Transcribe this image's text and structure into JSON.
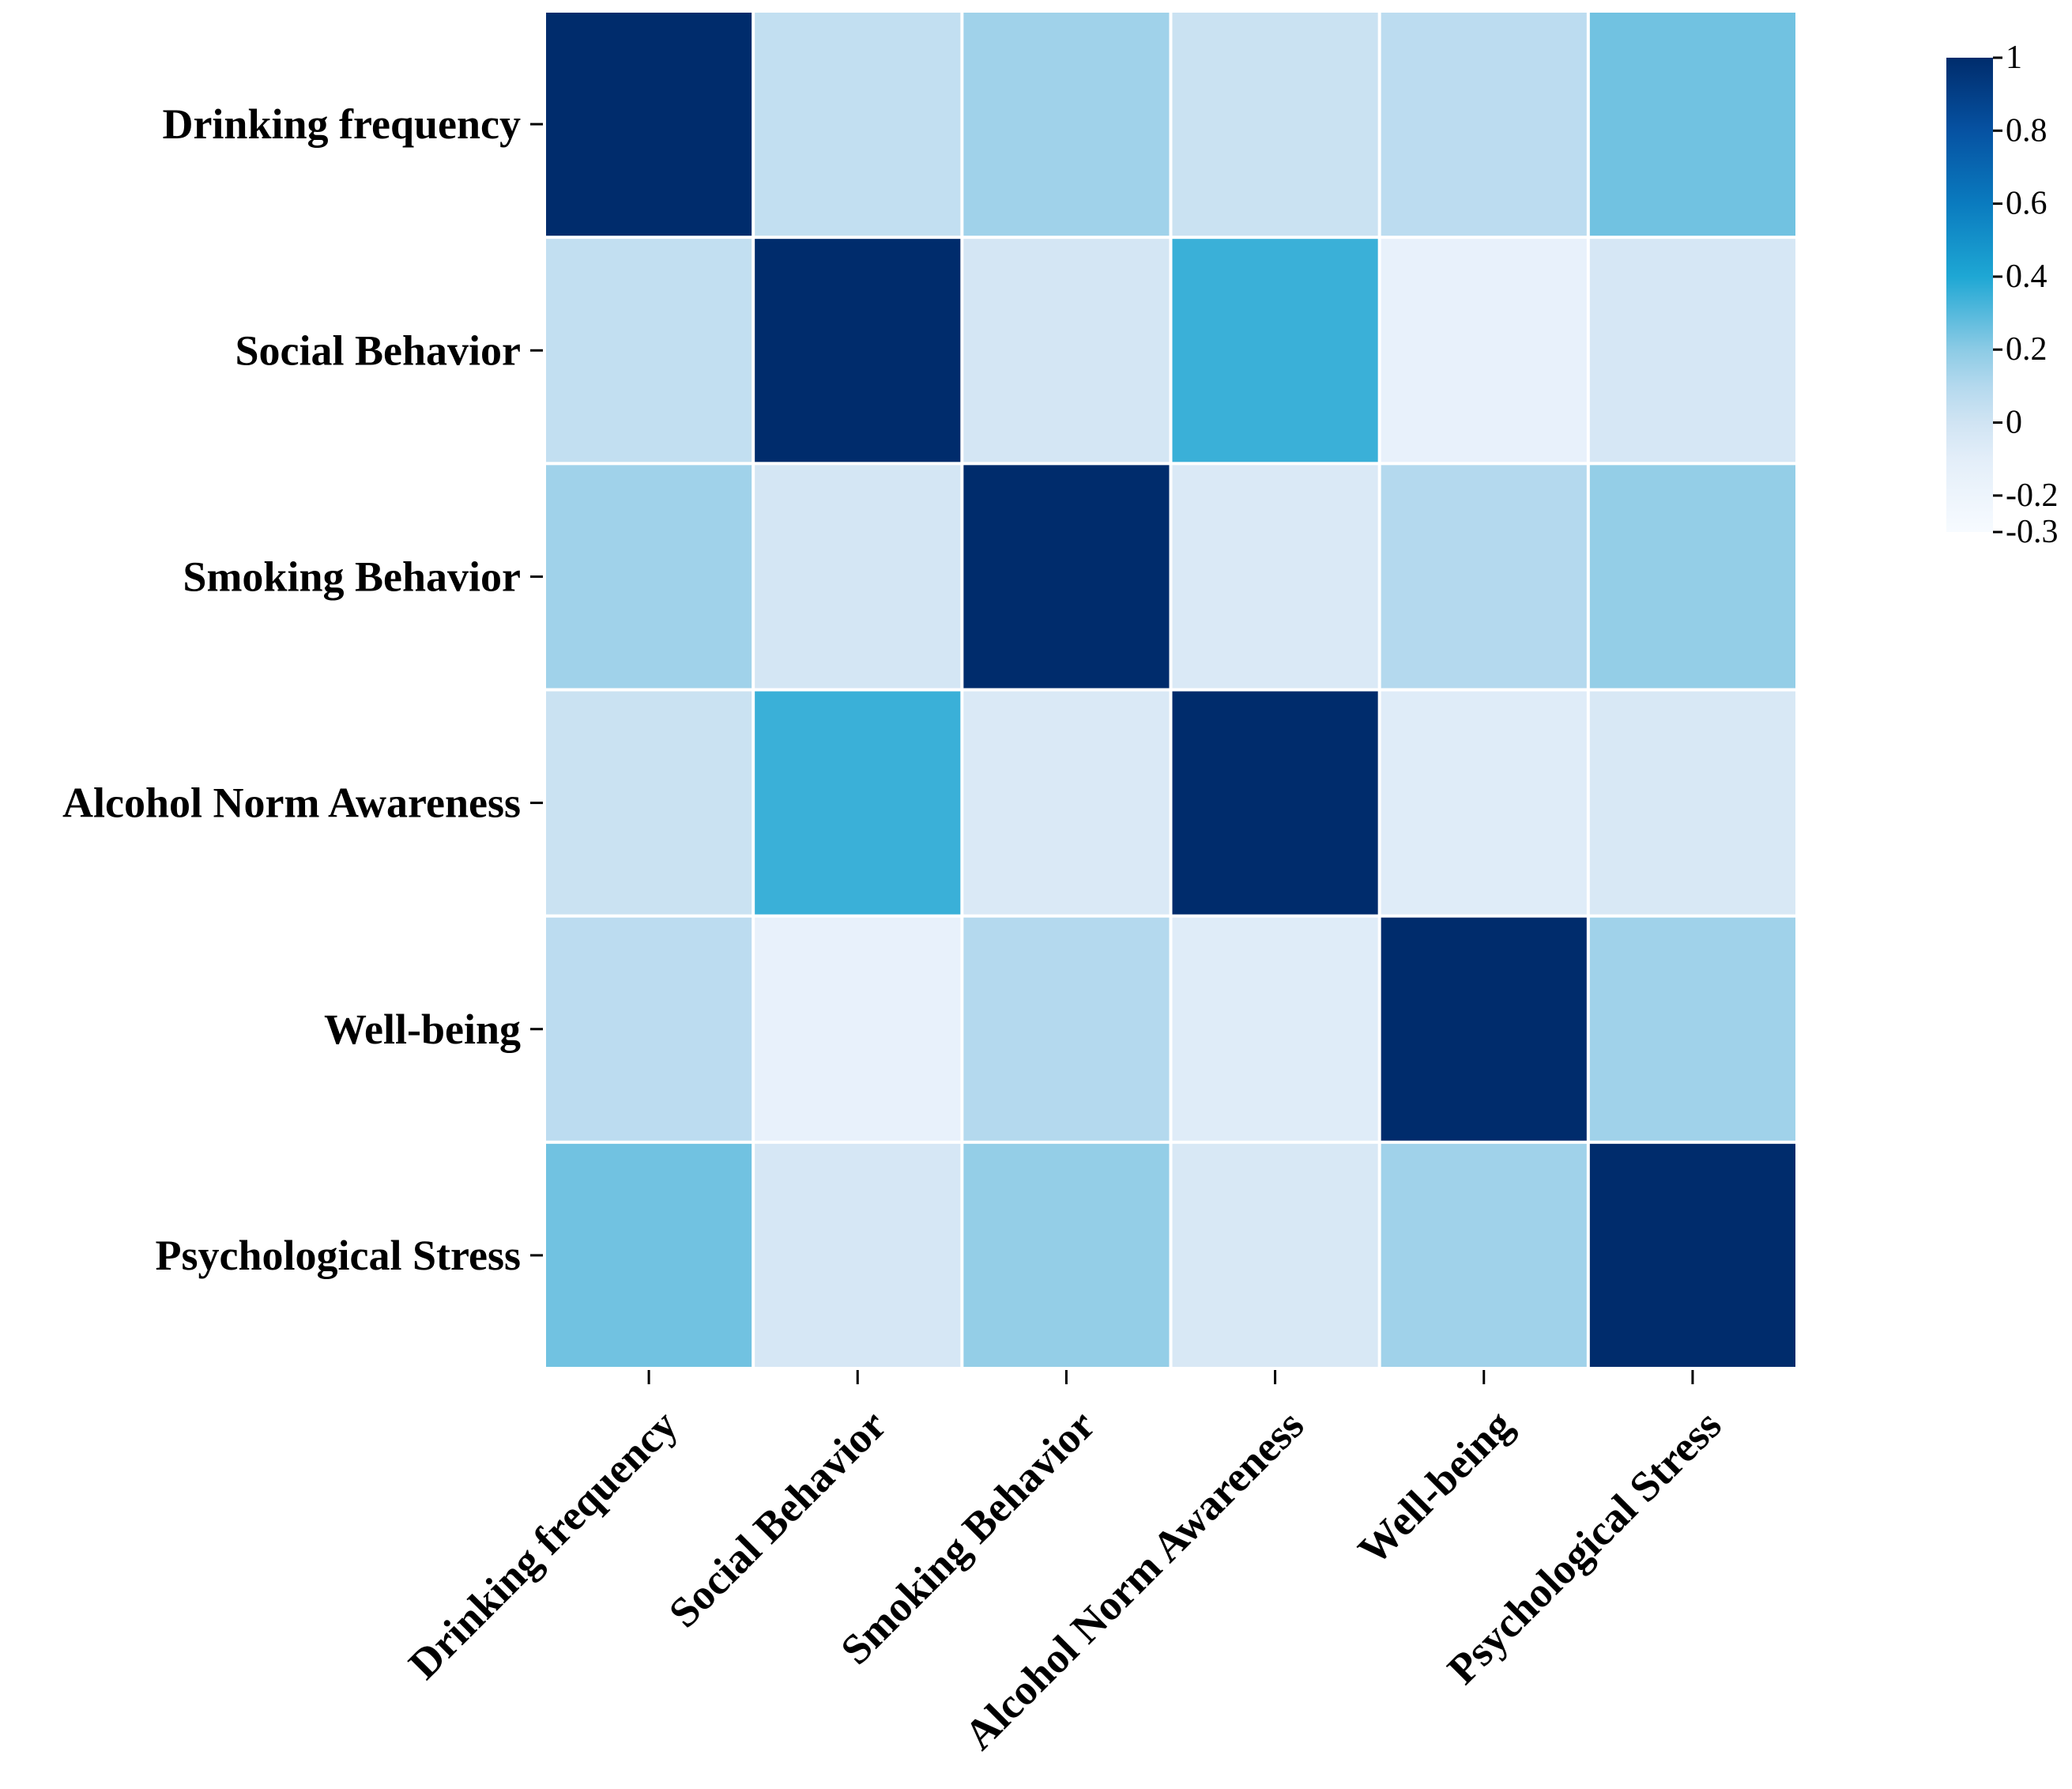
{
  "chart_data": {
    "type": "heatmap",
    "title": "",
    "xlabel": "",
    "ylabel": "",
    "rows": [
      "Drinking frequency",
      "Social Behavior",
      "Smoking Behavior",
      "Alcohol Norm Awareness",
      "Well-being",
      "Psychological Stress"
    ],
    "columns": [
      "Drinking frequency",
      "Social Behavior",
      "Smoking Behavior",
      "Alcohol Norm Awareness",
      "Well-being",
      "Psychological Stress"
    ],
    "values": [
      [
        1.0,
        0.05,
        0.15,
        0.02,
        0.07,
        0.25
      ],
      [
        0.05,
        1.0,
        -0.02,
        0.35,
        -0.15,
        -0.03
      ],
      [
        0.15,
        -0.02,
        1.0,
        -0.05,
        0.1,
        0.18
      ],
      [
        0.02,
        0.35,
        -0.05,
        1.0,
        -0.08,
        -0.04
      ],
      [
        0.07,
        -0.15,
        0.1,
        -0.08,
        1.0,
        0.15
      ],
      [
        0.25,
        -0.03,
        0.18,
        -0.04,
        0.15,
        1.0
      ]
    ],
    "colorbar": {
      "min": -0.3,
      "max": 1,
      "ticks": [
        1,
        0.8,
        0.6,
        0.4,
        0.2,
        0,
        -0.2,
        -0.3
      ],
      "tick_labels": [
        "1",
        "0.8",
        "0.6",
        "0.4",
        "0.2",
        "0",
        "-0.2",
        "-0.3"
      ],
      "colormap": "Blues",
      "stops": [
        {
          "v": -0.3,
          "color": "#f7fbff"
        },
        {
          "v": -0.1,
          "color": "#e3eef9"
        },
        {
          "v": 0.0,
          "color": "#d0e4f3"
        },
        {
          "v": 0.1,
          "color": "#b4d9ee"
        },
        {
          "v": 0.2,
          "color": "#8ccbe5"
        },
        {
          "v": 0.4,
          "color": "#1ea7d4"
        },
        {
          "v": 0.6,
          "color": "#0a7bbf"
        },
        {
          "v": 0.8,
          "color": "#0652a2"
        },
        {
          "v": 1.0,
          "color": "#002c6c"
        }
      ]
    },
    "grid_line_color": "#ffffff"
  }
}
